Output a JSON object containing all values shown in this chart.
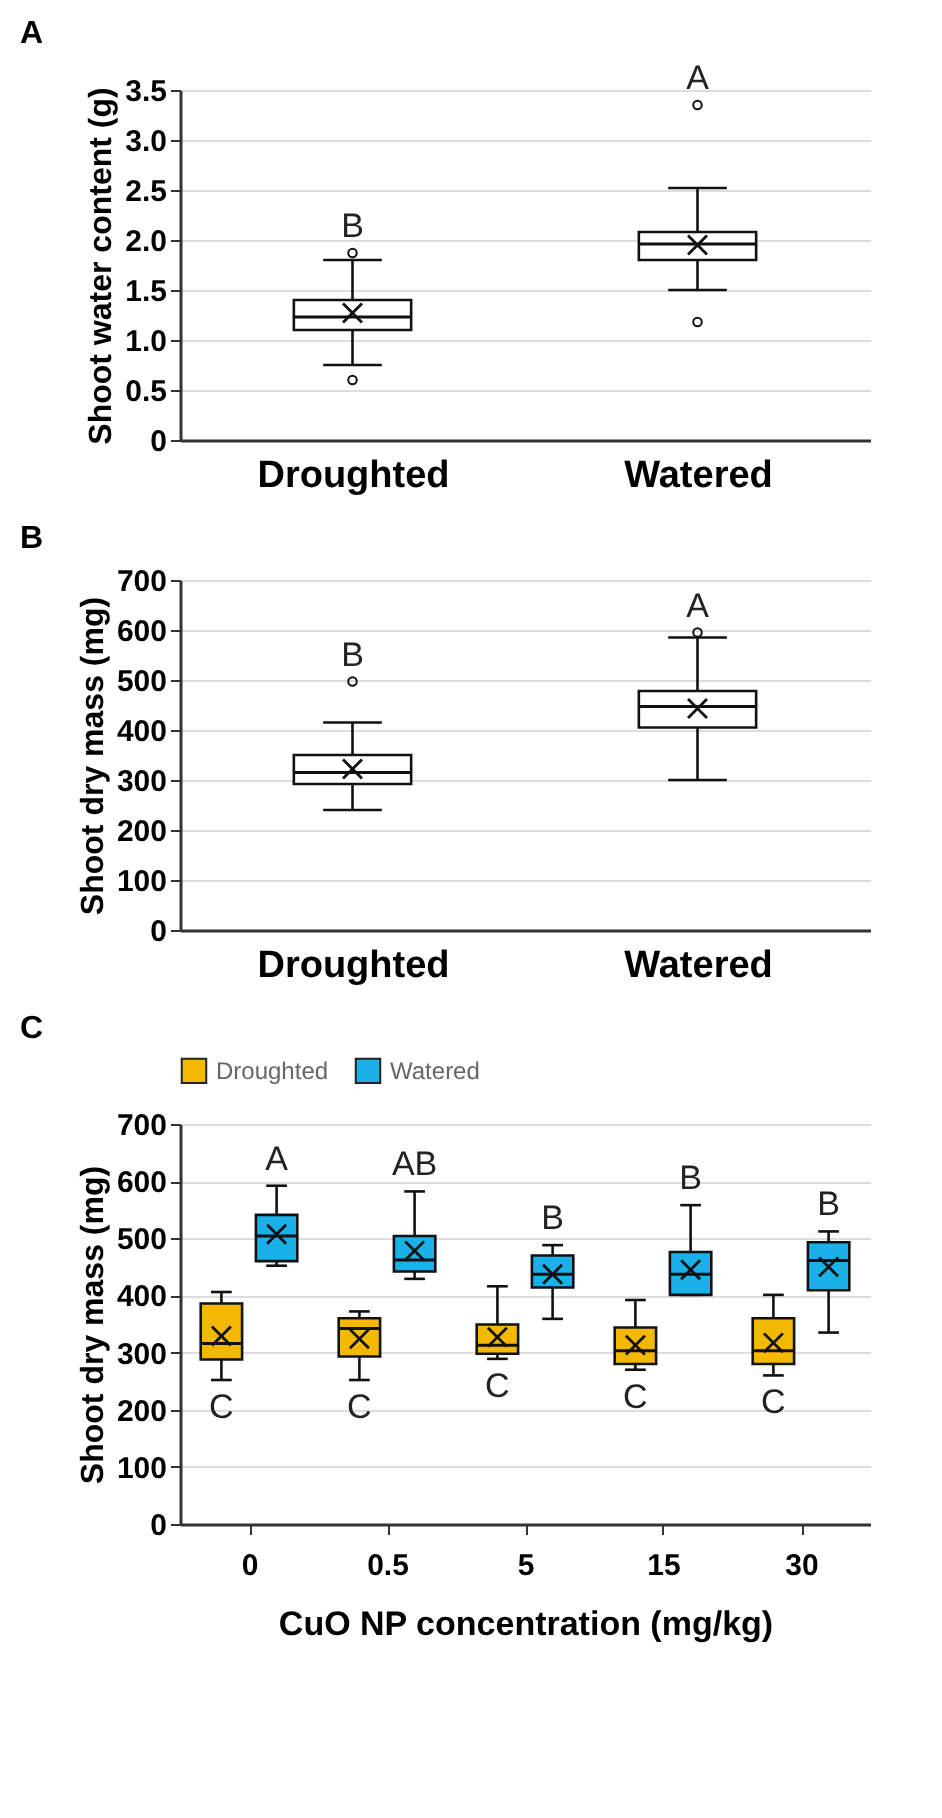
{
  "chart_data": [
    {
      "type": "box",
      "title": "A",
      "ylabel": "Shoot water content (g)",
      "categories": [
        "Droughted",
        "Watered"
      ],
      "ylim": [
        0,
        3.5
      ],
      "yticks": [
        0,
        {
          "value": 0.5,
          "label": "0.5"
        },
        {
          "value": 1,
          "label": "1.0"
        },
        {
          "value": 1.5,
          "label": "1.5"
        },
        {
          "value": 2,
          "label": "2.0"
        },
        {
          "value": 2.5,
          "label": "2.5"
        },
        {
          "value": 3,
          "label": "3.0"
        },
        {
          "value": 3.5,
          "label": "3.5"
        }
      ],
      "grid": "y",
      "boxes": [
        {
          "low": 0.75,
          "q1": 1.1,
          "median": 1.23,
          "q3": 1.4,
          "high": 1.8,
          "mean": 1.27,
          "outliers": [
            0.6,
            1.87
          ]
        },
        {
          "low": 1.5,
          "q1": 1.8,
          "median": 1.96,
          "q3": 2.08,
          "high": 2.52,
          "mean": 1.95,
          "outliers": [
            1.18,
            3.35
          ]
        }
      ],
      "annotations": [
        "B",
        "A"
      ]
    },
    {
      "type": "box",
      "title": "B",
      "ylabel": "Shoot dry mass (mg)",
      "categories": [
        "Droughted",
        "Watered"
      ],
      "ylim": [
        0,
        700
      ],
      "yticks": [
        0,
        100,
        200,
        300,
        400,
        500,
        600,
        700
      ],
      "grid": "y",
      "boxes": [
        {
          "low": 240,
          "q1": 292,
          "median": 315,
          "q3": 350,
          "high": 415,
          "mean": 322,
          "outliers": [
            497
          ]
        },
        {
          "low": 300,
          "q1": 405,
          "median": 447,
          "q3": 478,
          "high": 585,
          "mean": 443,
          "outliers": [
            595
          ]
        }
      ],
      "annotations": [
        "B",
        "A"
      ]
    },
    {
      "type": "box",
      "title": "C",
      "ylabel": "Shoot dry mass (mg)",
      "xlabel": "CuO NP concentration (mg/kg)",
      "categories": [
        "0",
        "0.5",
        "5",
        "15",
        "30"
      ],
      "ylim": [
        0,
        700
      ],
      "yticks": [
        0,
        100,
        200,
        300,
        400,
        500,
        600,
        700
      ],
      "grid": "y",
      "legend": "top",
      "series": [
        {
          "name": "Droughted",
          "color": "#f5b800",
          "boxes": [
            {
              "low": 252,
              "q1": 288,
              "median": 316,
              "q3": 386,
              "high": 406,
              "mean": 329
            },
            {
              "low": 252,
              "q1": 293,
              "median": 342,
              "q3": 360,
              "high": 372,
              "mean": 324
            },
            {
              "low": 289,
              "q1": 298,
              "median": 313,
              "q3": 349,
              "high": 416,
              "mean": 327
            },
            {
              "low": 270,
              "q1": 280,
              "median": 303,
              "q3": 344,
              "high": 392,
              "mean": 313
            },
            {
              "low": 260,
              "q1": 280,
              "median": 303,
              "q3": 360,
              "high": 401,
              "mean": 317
            }
          ]
        },
        {
          "name": "Watered",
          "color": "#1ab0e8",
          "boxes": [
            {
              "low": 452,
              "q1": 460,
              "median": 504,
              "q3": 541,
              "high": 592,
              "mean": 507
            },
            {
              "low": 429,
              "q1": 442,
              "median": 462,
              "q3": 504,
              "high": 582,
              "mean": 478
            },
            {
              "low": 359,
              "q1": 414,
              "median": 437,
              "q3": 470,
              "high": 488,
              "mean": 437
            },
            {
              "low": 401,
              "q1": 401,
              "median": 437,
              "q3": 476,
              "high": 558,
              "mean": 445
            },
            {
              "low": 335,
              "q1": 409,
              "median": 461,
              "q3": 493,
              "high": 512,
              "mean": 450
            }
          ]
        }
      ],
      "annotations": [
        "C",
        "C",
        "C",
        "C",
        "C",
        "A",
        "AB",
        "B",
        "B",
        "B"
      ]
    }
  ]
}
